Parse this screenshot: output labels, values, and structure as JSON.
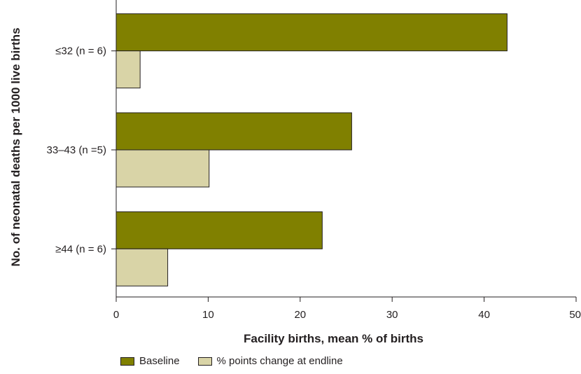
{
  "chart_data": {
    "type": "bar",
    "orientation": "horizontal",
    "categories": [
      "≤32 (n = 6)",
      "33–43 (n =5)",
      "≥44 (n = 6)"
    ],
    "series": [
      {
        "name": "Baseline",
        "color": "#808000",
        "values": [
          42.5,
          25.6,
          22.4
        ]
      },
      {
        "name": "% points change at endline",
        "color": "#d9d4a7",
        "values": [
          2.6,
          10.1,
          5.6
        ]
      }
    ],
    "xlabel": "Facility births, mean % of births",
    "ylabel": "No. of neonatal deaths per 1000 live births",
    "xlim": [
      0,
      50
    ],
    "xticks": [
      "0",
      "10",
      "20",
      "30",
      "40",
      "50"
    ],
    "grid": false,
    "legend_position": "bottom-left"
  }
}
